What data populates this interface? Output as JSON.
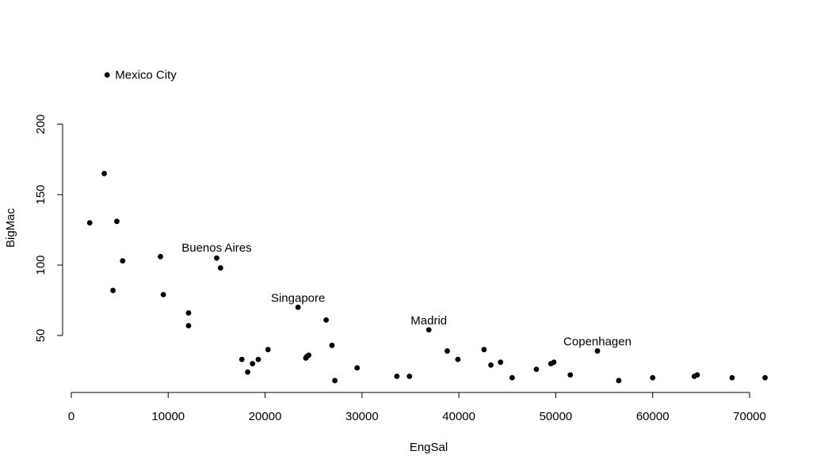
{
  "chart_data": {
    "type": "scatter",
    "title": "",
    "xlabel": "EngSal",
    "ylabel": "BigMac",
    "xlim": [
      0,
      72000
    ],
    "ylim": [
      15,
      235
    ],
    "x_ticks": [
      0,
      10000,
      20000,
      30000,
      40000,
      50000,
      60000,
      70000
    ],
    "y_ticks": [
      50,
      100,
      150,
      200
    ],
    "grid": false,
    "legend": "none",
    "point_color": "#000000",
    "points": [
      {
        "x": 3700,
        "y": 235,
        "label": "Mexico City"
      },
      {
        "x": 3400,
        "y": 165
      },
      {
        "x": 4700,
        "y": 131
      },
      {
        "x": 1900,
        "y": 130
      },
      {
        "x": 5300,
        "y": 103
      },
      {
        "x": 4300,
        "y": 82
      },
      {
        "x": 9200,
        "y": 106
      },
      {
        "x": 9500,
        "y": 79
      },
      {
        "x": 15000,
        "y": 105,
        "label": "Buenos Aires"
      },
      {
        "x": 15400,
        "y": 98
      },
      {
        "x": 12100,
        "y": 66
      },
      {
        "x": 12100,
        "y": 57
      },
      {
        "x": 17600,
        "y": 33
      },
      {
        "x": 18200,
        "y": 24
      },
      {
        "x": 18700,
        "y": 30
      },
      {
        "x": 19300,
        "y": 33
      },
      {
        "x": 20300,
        "y": 40
      },
      {
        "x": 23400,
        "y": 70,
        "label": "Singapore"
      },
      {
        "x": 24200,
        "y": 34
      },
      {
        "x": 24300,
        "y": 35
      },
      {
        "x": 24500,
        "y": 36
      },
      {
        "x": 26300,
        "y": 61
      },
      {
        "x": 26900,
        "y": 43
      },
      {
        "x": 27200,
        "y": 18
      },
      {
        "x": 29500,
        "y": 27
      },
      {
        "x": 33600,
        "y": 21
      },
      {
        "x": 34900,
        "y": 21
      },
      {
        "x": 36900,
        "y": 54,
        "label": "Madrid"
      },
      {
        "x": 38800,
        "y": 39
      },
      {
        "x": 39900,
        "y": 33
      },
      {
        "x": 42600,
        "y": 40
      },
      {
        "x": 43300,
        "y": 29
      },
      {
        "x": 44300,
        "y": 31
      },
      {
        "x": 45500,
        "y": 20
      },
      {
        "x": 48000,
        "y": 26
      },
      {
        "x": 49500,
        "y": 30
      },
      {
        "x": 49800,
        "y": 31
      },
      {
        "x": 51500,
        "y": 22
      },
      {
        "x": 54300,
        "y": 39,
        "label": "Copenhagen"
      },
      {
        "x": 56500,
        "y": 18
      },
      {
        "x": 60000,
        "y": 20
      },
      {
        "x": 64300,
        "y": 21
      },
      {
        "x": 64600,
        "y": 22
      },
      {
        "x": 68200,
        "y": 20
      },
      {
        "x": 71600,
        "y": 20
      }
    ]
  }
}
